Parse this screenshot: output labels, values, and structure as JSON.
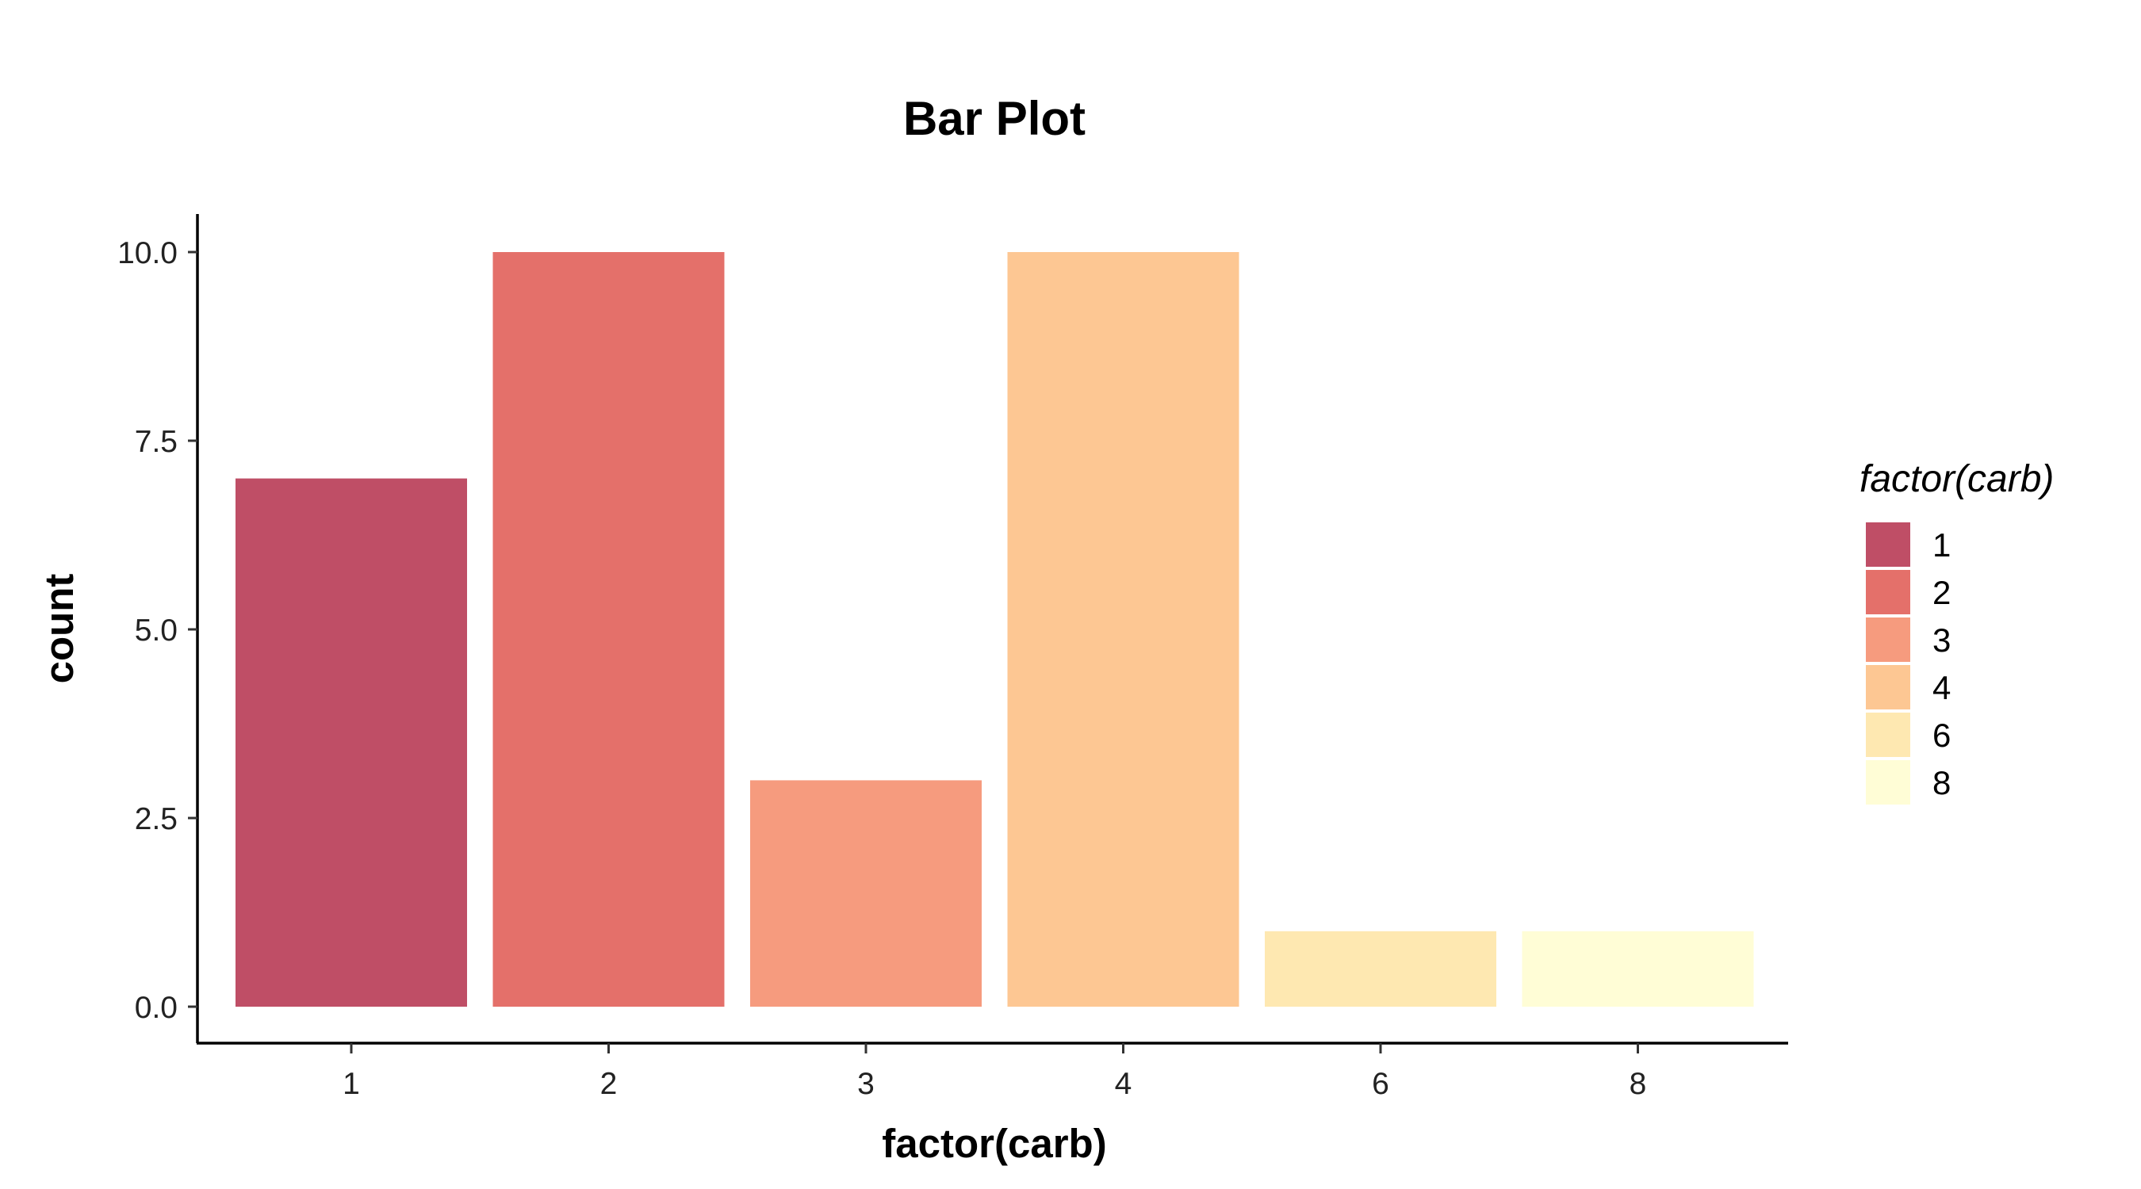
{
  "chart_data": {
    "type": "bar",
    "title": "Bar Plot",
    "xlabel": "factor(carb)",
    "ylabel": "count",
    "categories": [
      "1",
      "2",
      "3",
      "4",
      "6",
      "8"
    ],
    "values": [
      7,
      10,
      3,
      10,
      1,
      1
    ],
    "colors": [
      "#BF4E66",
      "#E4706A",
      "#F69B7E",
      "#FDC793",
      "#FEE8B1",
      "#FFFDD6"
    ],
    "ylim": [
      -0.5,
      10.5
    ],
    "yticks": [
      0,
      2.5,
      5,
      7.5,
      10
    ],
    "ytick_labels": [
      "0.0",
      "2.5",
      "5.0",
      "7.5",
      "10.0"
    ],
    "grid": false,
    "legend": {
      "title": "factor(carb)",
      "position": "right",
      "entries": [
        "1",
        "2",
        "3",
        "4",
        "6",
        "8"
      ]
    }
  }
}
